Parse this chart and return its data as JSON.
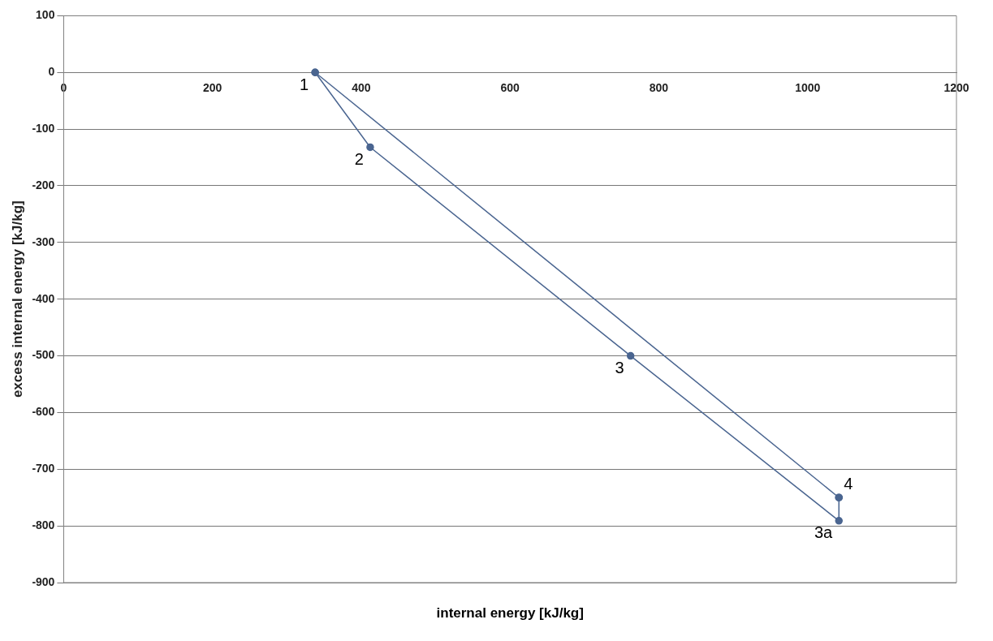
{
  "chart_data": {
    "type": "line",
    "xlabel": "internal energy [kJ/kg]",
    "ylabel": "excess internal energy [kJ/kg]",
    "series": [
      {
        "color": "#4a6590",
        "x": [
          338,
          412,
          762,
          1042,
          1042
        ],
        "values": [
          0,
          -132,
          -500,
          -791,
          -750
        ]
      },
      {
        "color": "#4a6590",
        "x": [
          338,
          1042
        ],
        "values": [
          0,
          -750
        ]
      }
    ],
    "xlim": [
      0,
      1200
    ],
    "xticks": [
      0,
      200,
      400,
      600,
      800,
      1000,
      1200
    ],
    "ylim": [
      -900,
      100
    ],
    "yticks": [
      -900,
      -800,
      -700,
      -600,
      -500,
      -400,
      -300,
      -200,
      -100,
      0,
      100
    ],
    "grid": "y",
    "legend": false,
    "marker": "circle",
    "line_style": "solid",
    "annotations": [
      {
        "text": "1",
        "x": 338,
        "y": 0
      },
      {
        "text": "2",
        "x": 412,
        "y": -132
      },
      {
        "text": "3",
        "x": 762,
        "y": -500
      },
      {
        "text": "3a",
        "x": 1042,
        "y": -791
      },
      {
        "text": "4",
        "x": 1042,
        "y": -750
      }
    ]
  }
}
